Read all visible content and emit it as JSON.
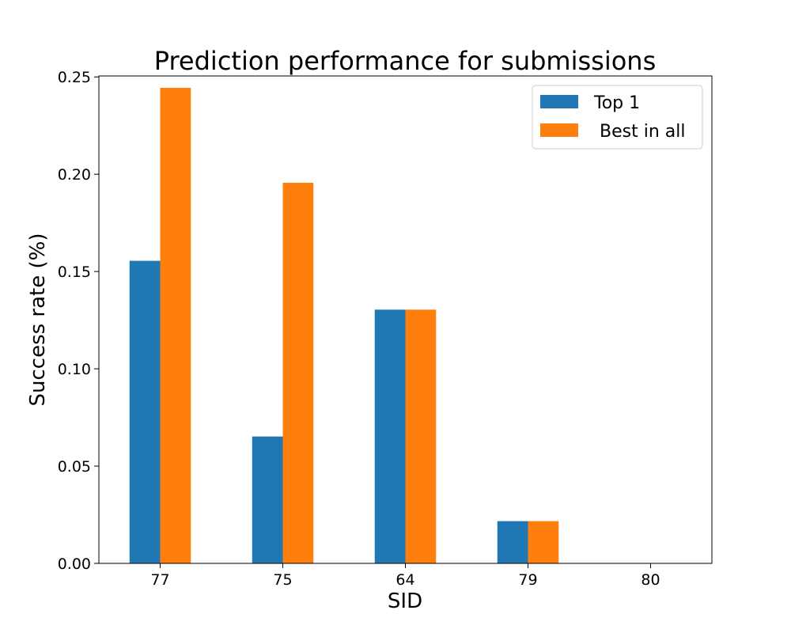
{
  "chart_data": {
    "type": "bar",
    "title": "Prediction performance for submissions",
    "xlabel": "SID",
    "ylabel": "Success rate (%)",
    "categories": [
      "77",
      "75",
      "64",
      "79",
      "80"
    ],
    "series": [
      {
        "name": "Top 1",
        "color": "#1f77b4",
        "values": [
          0.1555,
          0.0652,
          0.1304,
          0.0217,
          0.0
        ]
      },
      {
        "name": " Best in all",
        "color": "#ff7f0e",
        "values": [
          0.2444,
          0.1956,
          0.1304,
          0.0217,
          0.0
        ]
      }
    ],
    "ylim": [
      0,
      0.2505
    ],
    "yticks": [
      "0.00",
      "0.05",
      "0.10",
      "0.15",
      "0.20",
      "0.25"
    ],
    "ytick_values": [
      0,
      0.05,
      0.1,
      0.15,
      0.2,
      0.25
    ],
    "grid": false,
    "legend": "top-right"
  }
}
